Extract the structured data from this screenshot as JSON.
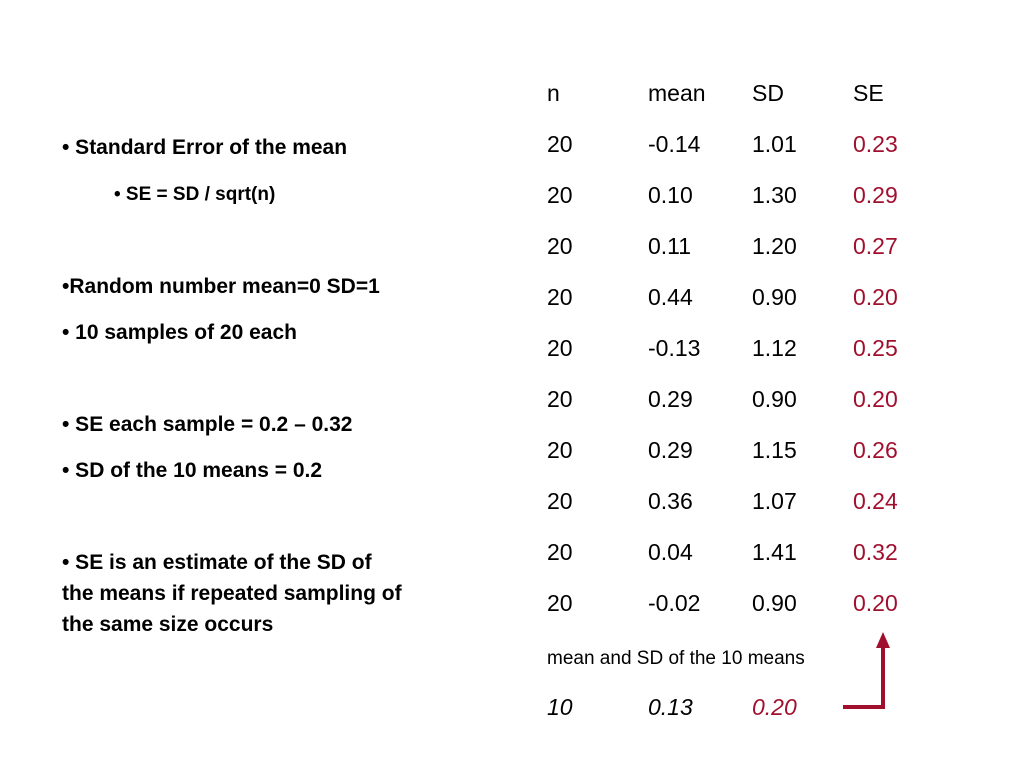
{
  "notes": [
    "• Standard Error of the mean",
    "• SE = SD / sqrt(n)",
    "•Random number mean=0 SD=1",
    "• 10 samples of 20 each",
    "• SE each sample = 0.2 – 0.32",
    "• SD of the 10 means = 0.2",
    "• SE is an estimate of the SD of",
    "the means if repeated sampling of",
    "the same size occurs"
  ],
  "table": {
    "headers": [
      "n",
      "mean",
      "SD",
      "SE"
    ],
    "rows": [
      [
        "20",
        "-0.14",
        "1.01",
        "0.23"
      ],
      [
        "20",
        "0.10",
        "1.30",
        "0.29"
      ],
      [
        "20",
        "0.11",
        "1.20",
        "0.27"
      ],
      [
        "20",
        "0.44",
        "0.90",
        "0.20"
      ],
      [
        "20",
        "-0.13",
        "1.12",
        "0.25"
      ],
      [
        "20",
        "0.29",
        "0.90",
        "0.20"
      ],
      [
        "20",
        "0.29",
        "1.15",
        "0.26"
      ],
      [
        "20",
        "0.36",
        "1.07",
        "0.24"
      ],
      [
        "20",
        "0.04",
        "1.41",
        "0.32"
      ],
      [
        "20",
        "-0.02",
        "0.90",
        "0.20"
      ]
    ]
  },
  "summary": {
    "caption": "mean and SD of the 10 means",
    "values": [
      "10",
      "0.13",
      "0.20"
    ]
  },
  "colors": {
    "se_highlight": "#a0102e"
  }
}
